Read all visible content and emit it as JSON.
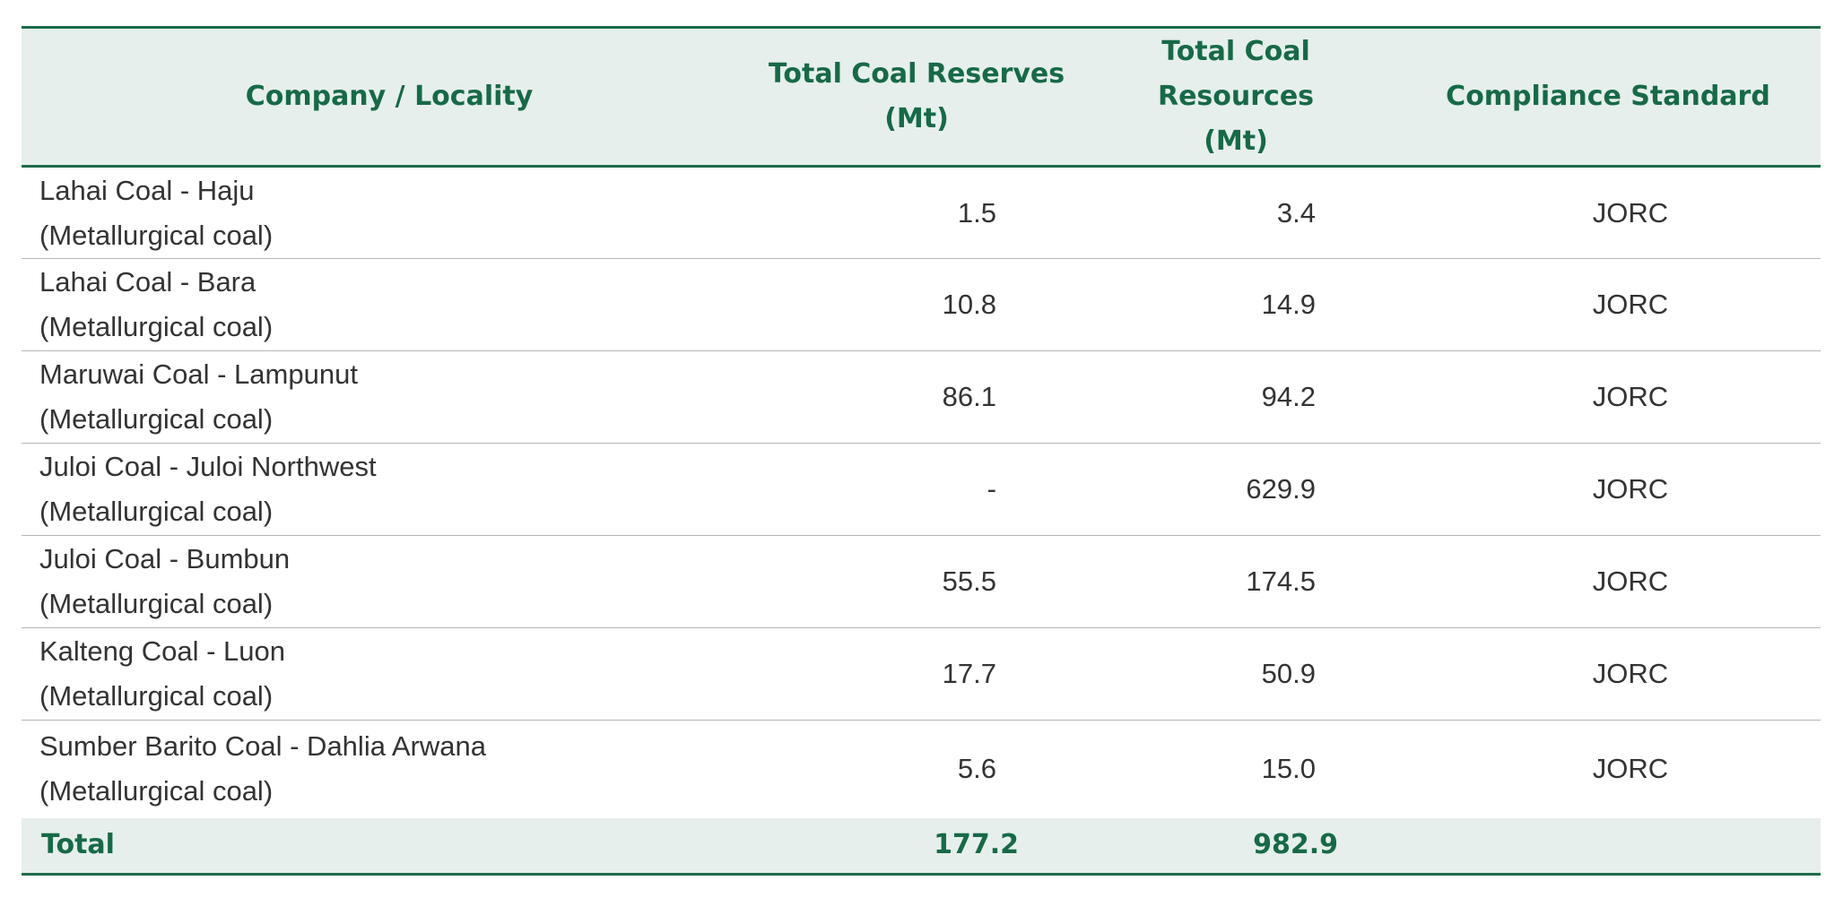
{
  "table": {
    "headers": {
      "company": "Company / Locality",
      "reserves_line1": "Total Coal Reserves",
      "reserves_line2": "(Mt)",
      "resources_line1": "Total Coal Resources",
      "resources_line2": "(Mt)",
      "standard": "Compliance Standard"
    },
    "rows": [
      {
        "name": "Lahai Coal - Haju",
        "type": "(Metallurgical coal)",
        "reserves": "1.5",
        "resources": "3.4",
        "standard": "JORC"
      },
      {
        "name": "Lahai Coal - Bara",
        "type": "(Metallurgical coal)",
        "reserves": "10.8",
        "resources": "14.9",
        "standard": "JORC"
      },
      {
        "name": "Maruwai Coal - Lampunut",
        "type": "(Metallurgical coal)",
        "reserves": "86.1",
        "resources": "94.2",
        "standard": "JORC"
      },
      {
        "name": "Juloi Coal - Juloi Northwest",
        "type": "(Metallurgical coal)",
        "reserves": "-",
        "resources": "629.9",
        "standard": "JORC"
      },
      {
        "name": "Juloi Coal - Bumbun",
        "type": "(Metallurgical coal)",
        "reserves": "55.5",
        "resources": "174.5",
        "standard": "JORC"
      },
      {
        "name": "Kalteng Coal - Luon",
        "type": "(Metallurgical coal)",
        "reserves": "17.7",
        "resources": "50.9",
        "standard": "JORC"
      },
      {
        "name": "Sumber Barito Coal - Dahlia Arwana",
        "type": "(Metallurgical coal)",
        "reserves": "5.6",
        "resources": "15.0",
        "standard": "JORC"
      }
    ],
    "total": {
      "label": "Total",
      "reserves": "177.2",
      "resources": "982.9"
    }
  }
}
